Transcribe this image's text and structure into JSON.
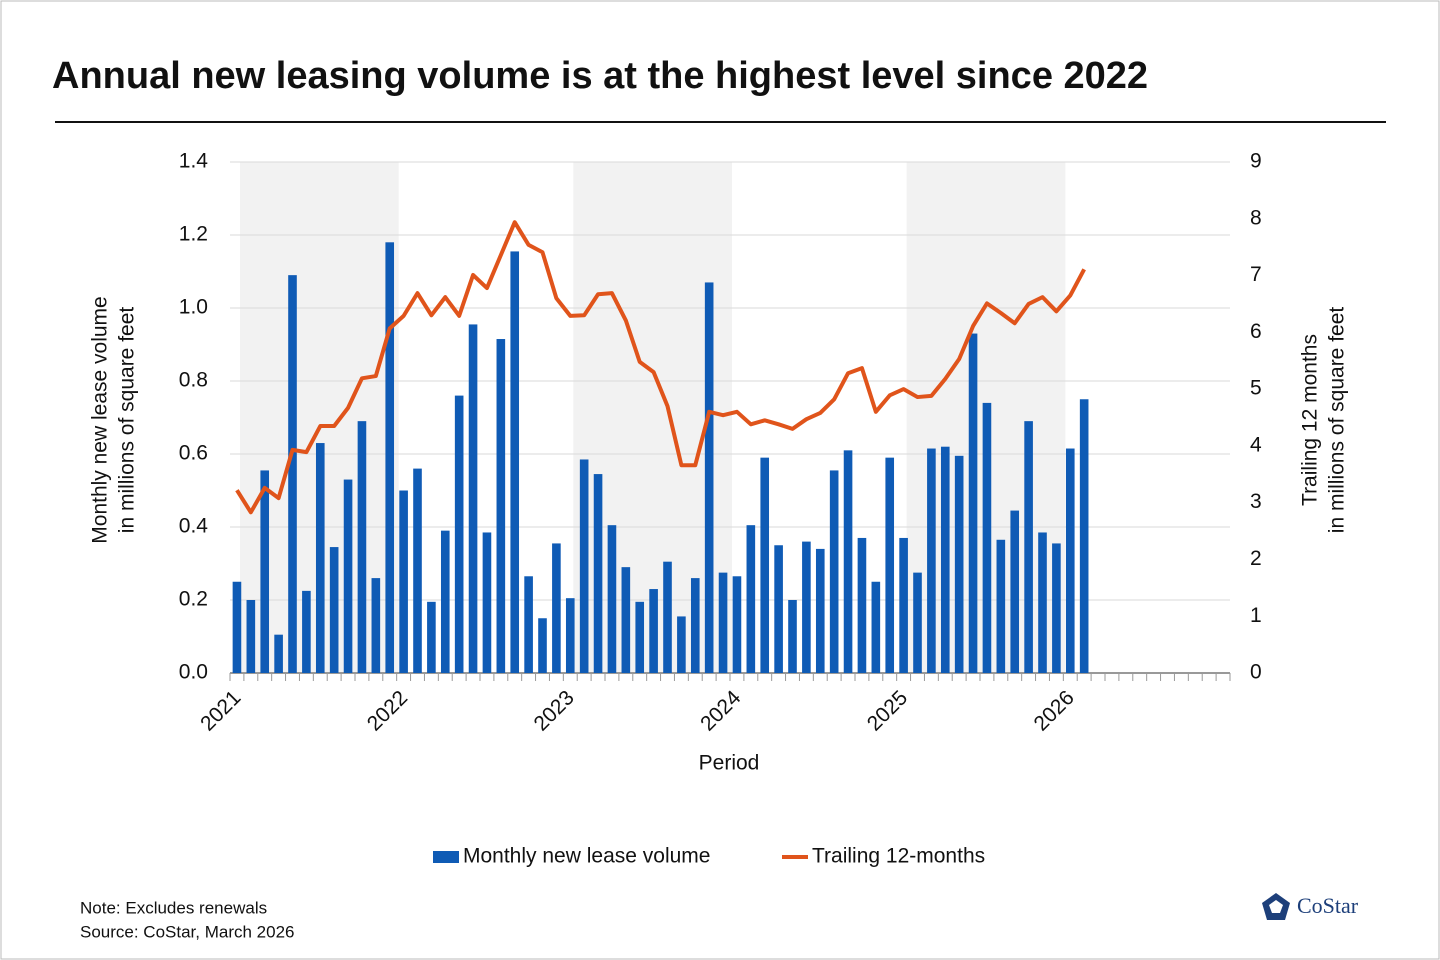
{
  "chart_data": {
    "type": "bar_line",
    "title": "Annual new leasing volume is at the highest level since 2022",
    "x_label": "Period",
    "y_label": [
      "Monthly new lease volume",
      "in millions of square feet"
    ],
    "y2_label": [
      "Trailing 12 months",
      "in millions of square feet"
    ],
    "categories": [
      "2021",
      null,
      null,
      null,
      null,
      null,
      null,
      null,
      null,
      null,
      null,
      null,
      "2022",
      null,
      null,
      null,
      null,
      null,
      null,
      null,
      null,
      null,
      null,
      null,
      "2023",
      null,
      null,
      null,
      null,
      null,
      null,
      null,
      null,
      null,
      null,
      null,
      "2024",
      null,
      null,
      null,
      null,
      null,
      null,
      null,
      null,
      null,
      null,
      null,
      "2025",
      null,
      null,
      null,
      null,
      null,
      null,
      null,
      null,
      null,
      null,
      null,
      "2026",
      null,
      null,
      null,
      null,
      null,
      null,
      null,
      null,
      null,
      null,
      null
    ],
    "series": [
      {
        "name": "Monthly new lease volume",
        "color": "#0f5bb5",
        "kind": "bar",
        "axis": "y",
        "values": [
          0.25,
          0.2,
          0.555,
          0.105,
          1.09,
          0.225,
          0.63,
          0.345,
          0.53,
          0.69,
          0.26,
          1.18,
          0.5,
          0.56,
          0.195,
          0.39,
          0.76,
          0.955,
          0.385,
          0.915,
          1.155,
          0.265,
          0.15,
          0.355,
          0.205,
          0.585,
          0.545,
          0.405,
          0.29,
          0.195,
          0.23,
          0.305,
          0.155,
          0.26,
          1.07,
          0.275,
          0.265,
          0.405,
          0.59,
          0.35,
          0.2,
          0.36,
          0.34,
          0.555,
          0.61,
          0.37,
          0.25,
          0.59,
          0.37,
          0.275,
          0.615,
          0.62,
          0.595,
          0.93,
          0.74,
          0.365,
          0.445,
          0.69,
          0.385,
          0.355,
          0.615,
          0.75,
          null,
          null,
          null,
          null,
          null,
          null,
          null,
          null,
          null,
          null
        ]
      },
      {
        "name": "Trailing 12-months",
        "color": "#e0541b",
        "kind": "line",
        "axis": "y2",
        "values": [
          3.22,
          2.83,
          3.26,
          3.08,
          3.93,
          3.89,
          4.35,
          4.35,
          4.67,
          5.19,
          5.23,
          6.07,
          6.29,
          6.69,
          6.3,
          6.62,
          6.29,
          7.01,
          6.78,
          7.36,
          7.94,
          7.54,
          7.41,
          6.6,
          6.29,
          6.3,
          6.67,
          6.69,
          6.21,
          5.48,
          5.3,
          4.7,
          3.66,
          3.66,
          4.6,
          4.54,
          4.6,
          4.38,
          4.45,
          4.38,
          4.3,
          4.47,
          4.58,
          4.82,
          5.28,
          5.37,
          4.6,
          4.89,
          5.0,
          4.86,
          4.88,
          5.18,
          5.53,
          6.11,
          6.51,
          6.34,
          6.16,
          6.5,
          6.62,
          6.37,
          6.65,
          7.11,
          null,
          null,
          null,
          null,
          null,
          null,
          null,
          null,
          null,
          null
        ]
      }
    ],
    "ylim": [
      0,
      1.4
    ],
    "yticks": [
      {
        "value": 0,
        "label": "0.0"
      },
      0.2,
      0.4,
      0.6,
      0.8,
      {
        "value": 1,
        "label": "1.0"
      },
      1.2,
      1.4
    ],
    "y2lim": [
      0,
      9
    ],
    "y2ticks": [
      0,
      1,
      2,
      3,
      4,
      5,
      6,
      7,
      8,
      9
    ],
    "grid": true,
    "legend": "bottom",
    "note": "Note: Excludes renewals",
    "source": "Source: CoStar, March 2026",
    "logo": "CoStar"
  }
}
